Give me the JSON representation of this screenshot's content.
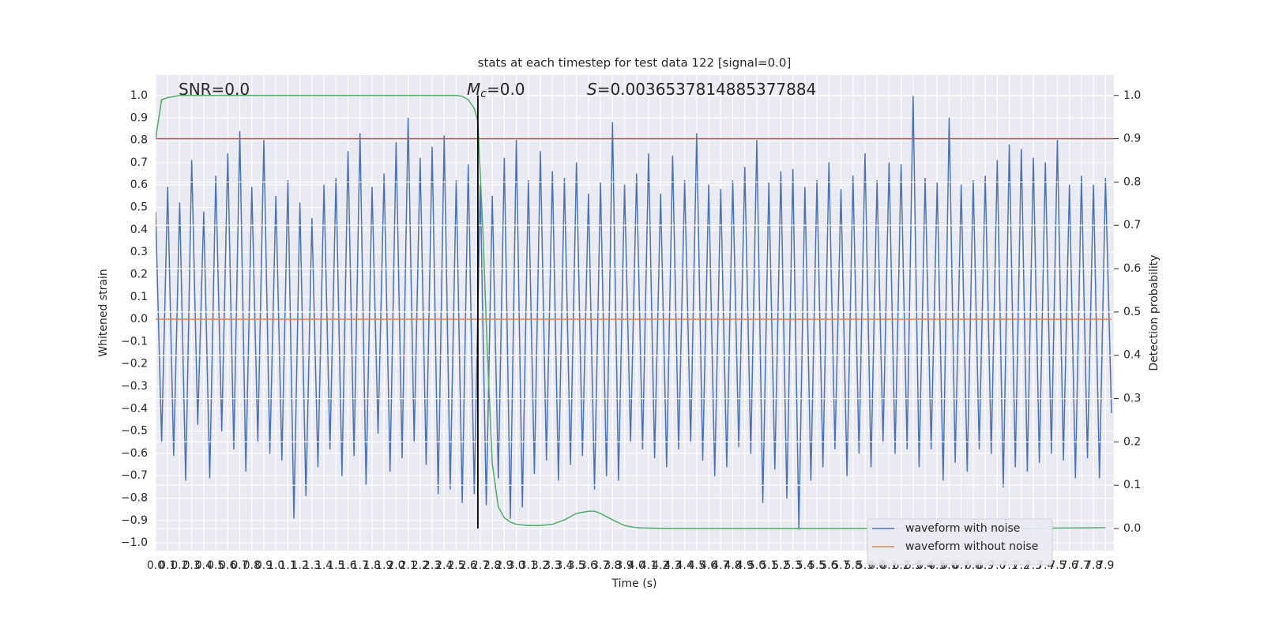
{
  "chart_data": {
    "type": "line",
    "title": "stats at each timestep for test data 122 [signal=0.0]",
    "x_label": "Time (s)",
    "y_label": "Whitened strain",
    "y2_label": "Detection probability",
    "annotations": [
      {
        "text": "SNR=0.0"
      },
      {
        "italic": "M",
        "sub": "c",
        "text": "=0.0"
      },
      {
        "italic": "S",
        "text": "=0.0036537814885377884"
      }
    ],
    "xlim": [
      0,
      7.97
    ],
    "ylim": [
      -1.035,
      1.092
    ],
    "y2lim": [
      -0.051,
      1.047
    ],
    "grid": true,
    "legend": "lower right",
    "xticks": [
      {
        "value": 0,
        "label": "0.0"
      },
      0.1,
      0.2,
      0.3,
      0.4,
      0.5,
      0.6,
      0.7,
      0.8,
      0.9,
      {
        "value": 1,
        "label": "1.0"
      },
      1.1,
      1.2,
      1.3,
      1.4,
      1.5,
      1.6,
      1.7,
      1.8,
      1.9,
      {
        "value": 2,
        "label": "2.0"
      },
      2.1,
      2.2,
      2.3,
      2.4,
      2.5,
      2.6,
      2.7,
      2.8,
      2.9,
      {
        "value": 3,
        "label": "3.0"
      },
      3.1,
      3.2,
      3.3,
      3.4,
      3.5,
      3.6,
      3.7,
      3.8,
      3.9,
      {
        "value": 4,
        "label": "4.0"
      },
      4.1,
      4.2,
      4.3,
      4.4,
      4.5,
      4.6,
      4.7,
      4.8,
      4.9,
      {
        "value": 5,
        "label": "5.0"
      },
      5.1,
      5.2,
      5.3,
      5.4,
      5.5,
      5.6,
      5.7,
      5.8,
      5.9,
      {
        "value": 6,
        "label": "6.0"
      },
      6.1,
      6.2,
      6.3,
      6.4,
      6.5,
      6.6,
      6.7,
      6.8,
      6.9,
      {
        "value": 7,
        "label": "7.0"
      },
      7.1,
      7.2,
      7.3,
      7.4,
      7.5,
      7.6,
      7.7,
      7.8,
      7.9
    ],
    "yticks": [
      {
        "value": -1,
        "label": "−1.0"
      },
      {
        "value": -0.9,
        "label": "−0.9"
      },
      {
        "value": -0.8,
        "label": "−0.8"
      },
      {
        "value": -0.7,
        "label": "−0.7"
      },
      {
        "value": -0.6,
        "label": "−0.6"
      },
      {
        "value": -0.5,
        "label": "−0.5"
      },
      {
        "value": -0.4,
        "label": "−0.4"
      },
      {
        "value": -0.3,
        "label": "−0.3"
      },
      {
        "value": -0.2,
        "label": "−0.2"
      },
      {
        "value": -0.1,
        "label": "−0.1"
      },
      {
        "value": 0,
        "label": "0.0"
      },
      0.1,
      0.2,
      0.3,
      0.4,
      0.5,
      0.6,
      0.7,
      0.8,
      0.9,
      {
        "value": 1,
        "label": "1.0"
      }
    ],
    "y2ticks": [
      {
        "value": 0,
        "label": "0.0"
      },
      0.1,
      0.2,
      0.3,
      0.4,
      0.5,
      0.6,
      0.7,
      0.8,
      0.9,
      {
        "value": 1,
        "label": "1.0"
      }
    ],
    "series": [
      {
        "name": "waveform with noise",
        "color": "#4c72b0",
        "axis": "y",
        "x": [
          0,
          0.05,
          0.1,
          0.15,
          0.2,
          0.25,
          0.3,
          0.35,
          0.4,
          0.45,
          0.5,
          0.55,
          0.6,
          0.65,
          0.7,
          0.75,
          0.8,
          0.85,
          0.9,
          0.95,
          1,
          1.05,
          1.1,
          1.15,
          1.2,
          1.25,
          1.3,
          1.35,
          1.4,
          1.45,
          1.5,
          1.55,
          1.6,
          1.65,
          1.7,
          1.75,
          1.8,
          1.85,
          1.9,
          1.95,
          2,
          2.05,
          2.1,
          2.15,
          2.2,
          2.25,
          2.3,
          2.35,
          2.4,
          2.45,
          2.5,
          2.55,
          2.6,
          2.65,
          2.7,
          2.75,
          2.8,
          2.85,
          2.9,
          2.95,
          3,
          3.05,
          3.1,
          3.15,
          3.2,
          3.25,
          3.3,
          3.35,
          3.4,
          3.45,
          3.5,
          3.55,
          3.6,
          3.65,
          3.7,
          3.75,
          3.8,
          3.85,
          3.9,
          3.95,
          4,
          4.05,
          4.1,
          4.15,
          4.2,
          4.25,
          4.3,
          4.35,
          4.4,
          4.45,
          4.5,
          4.55,
          4.6,
          4.65,
          4.7,
          4.75,
          4.8,
          4.85,
          4.9,
          4.95,
          5,
          5.05,
          5.1,
          5.15,
          5.2,
          5.25,
          5.3,
          5.35,
          5.4,
          5.45,
          5.5,
          5.55,
          5.6,
          5.65,
          5.7,
          5.75,
          5.8,
          5.85,
          5.9,
          5.95,
          6,
          6.05,
          6.1,
          6.15,
          6.2,
          6.25,
          6.3,
          6.35,
          6.4,
          6.45,
          6.5,
          6.55,
          6.6,
          6.65,
          6.7,
          6.75,
          6.8,
          6.85,
          6.9,
          6.95,
          7,
          7.05,
          7.1,
          7.15,
          7.2,
          7.25,
          7.3,
          7.35,
          7.4,
          7.45,
          7.5,
          7.55,
          7.6,
          7.65,
          7.7,
          7.75,
          7.8,
          7.85,
          7.9,
          7.95
        ],
        "values": [
          0.48,
          -0.55,
          0.59,
          -0.61,
          0.52,
          -0.72,
          0.71,
          -0.47,
          0.48,
          -0.71,
          0.64,
          -0.5,
          0.74,
          -0.58,
          0.84,
          -0.68,
          0.59,
          -0.55,
          0.8,
          -0.6,
          0.55,
          -0.63,
          0.62,
          -0.89,
          0.52,
          -0.79,
          0.45,
          -0.66,
          0.6,
          -0.58,
          0.63,
          -0.7,
          0.75,
          -0.61,
          0.83,
          -0.74,
          0.59,
          -0.51,
          0.65,
          -0.68,
          0.79,
          -0.62,
          0.9,
          -0.55,
          0.72,
          -0.65,
          0.77,
          -0.78,
          0.82,
          -0.76,
          0.62,
          -0.82,
          0.69,
          -0.78,
          0.6,
          -0.83,
          0.55,
          -0.71,
          0.72,
          -0.89,
          0.8,
          -0.84,
          0.62,
          -0.69,
          0.75,
          -0.63,
          0.66,
          -0.72,
          0.63,
          -0.65,
          0.7,
          -0.61,
          0.56,
          -0.76,
          0.61,
          -0.7,
          0.88,
          -0.72,
          0.6,
          -0.55,
          0.65,
          -0.58,
          0.74,
          -0.62,
          0.56,
          -0.66,
          0.73,
          -0.58,
          0.62,
          -0.55,
          0.83,
          -0.63,
          0.6,
          -0.7,
          0.58,
          -0.66,
          0.62,
          -0.57,
          0.68,
          -0.6,
          0.8,
          -0.82,
          0.61,
          -0.67,
          0.66,
          -0.8,
          0.67,
          -0.94,
          0.59,
          -0.72,
          0.62,
          -0.66,
          0.7,
          -0.58,
          0.58,
          -0.7,
          0.64,
          -0.6,
          0.74,
          -0.66,
          0.62,
          -0.55,
          0.7,
          -0.6,
          0.69,
          -0.58,
          1.0,
          -0.66,
          0.63,
          -0.58,
          0.61,
          -0.72,
          0.9,
          -0.64,
          0.6,
          -0.68,
          0.62,
          -0.58,
          0.64,
          -0.6,
          0.71,
          -0.75,
          0.78,
          -0.66,
          0.76,
          -0.68,
          0.72,
          -0.64,
          0.7,
          -0.6,
          0.8,
          -0.63,
          0.6,
          -0.71,
          0.64,
          -0.62,
          0.6,
          -0.71,
          0.63,
          -0.42
        ]
      },
      {
        "name": "waveform without noise",
        "color": "#dd8452",
        "axis": "y",
        "x": [
          0,
          7.95
        ],
        "values": [
          0,
          0
        ]
      },
      {
        "color": "#55a868",
        "axis": "y2",
        "x": [
          0,
          0.05,
          0.1,
          0.2,
          0.5,
          1.0,
          1.5,
          2.0,
          2.4,
          2.5,
          2.55,
          2.6,
          2.65,
          2.68,
          2.72,
          2.76,
          2.8,
          2.85,
          2.9,
          2.95,
          3.0,
          3.1,
          3.2,
          3.3,
          3.4,
          3.5,
          3.6,
          3.65,
          3.7,
          3.8,
          3.9,
          4.0,
          4.1,
          4.3,
          5.0,
          6.0,
          7.0,
          7.9
        ],
        "values": [
          0.9,
          0.99,
          0.995,
          1.0,
          1.0,
          1.0,
          1.0,
          1.0,
          1.0,
          1.0,
          0.998,
          0.99,
          0.97,
          0.94,
          0.7,
          0.4,
          0.15,
          0.05,
          0.025,
          0.015,
          0.01,
          0.007,
          0.007,
          0.01,
          0.02,
          0.035,
          0.04,
          0.04,
          0.035,
          0.02,
          0.007,
          0.002,
          0.001,
          0,
          0,
          0,
          0,
          0.002
        ]
      }
    ],
    "hlines": [
      {
        "y": 0.9,
        "axis": "y2",
        "color": "#c44e52"
      }
    ],
    "vlines": [
      {
        "x": 2.68,
        "ymin": 0,
        "ymax": 1.0,
        "axis": "y2",
        "color": "#000000"
      }
    ]
  }
}
